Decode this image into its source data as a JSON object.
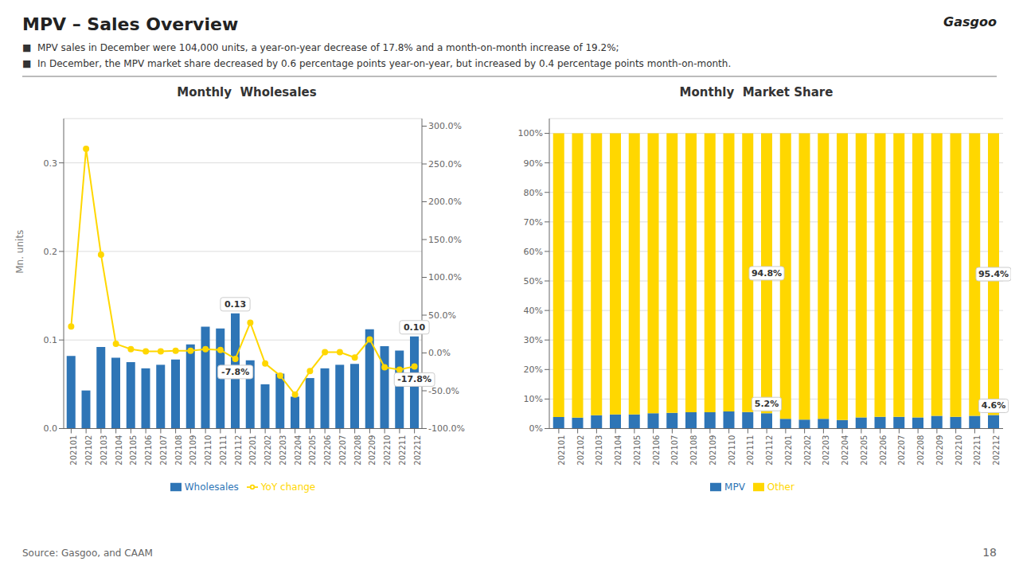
{
  "title": "MPV – Sales Overview",
  "subtitle": [
    "■  MPV sales in December were 104,000 units, a year-on-year decrease of 17.8% and a month-on-month increase of 19.2%;",
    "■  In December, the MPV market share decreased by 0.6 percentage points year-on-year, but increased by 0.4 percentage points month-on-month."
  ],
  "source": "Source: Gasgoo, and CAAM",
  "page": "18",
  "logo": "Gasgoo",
  "chart_data": [
    {
      "type": "bar",
      "title": "Monthly  Wholesales",
      "ylabel": "Mn. units",
      "categories": [
        "202101",
        "202102",
        "202103",
        "202104",
        "202105",
        "202106",
        "202107",
        "202108",
        "202109",
        "202110",
        "202111",
        "202112",
        "202201",
        "202202",
        "202203",
        "202204",
        "202205",
        "202206",
        "202207",
        "202208",
        "202209",
        "202210",
        "202211",
        "202212"
      ],
      "series": [
        {
          "name": "Wholesales",
          "type": "bar",
          "color": "#2E75B6",
          "values": [
            0.082,
            0.043,
            0.092,
            0.08,
            0.075,
            0.068,
            0.072,
            0.078,
            0.095,
            0.115,
            0.113,
            0.13,
            0.077,
            0.05,
            0.062,
            0.036,
            0.057,
            0.068,
            0.072,
            0.073,
            0.112,
            0.093,
            0.088,
            0.104
          ],
          "value_labels": [
            null,
            null,
            null,
            null,
            null,
            null,
            null,
            null,
            null,
            null,
            null,
            "0.13",
            null,
            null,
            null,
            null,
            null,
            null,
            null,
            null,
            null,
            null,
            null,
            "0.10"
          ]
        },
        {
          "name": "YoY change",
          "type": "line",
          "axis": "y2",
          "color": "#FFD700",
          "marker": "circle",
          "values": [
            35.0,
            270.0,
            130.0,
            12.0,
            5.0,
            2.0,
            2.0,
            3.0,
            3.0,
            5.0,
            4.0,
            -7.8,
            40.0,
            -14.0,
            -30.0,
            -55.0,
            -24.0,
            1.0,
            1.0,
            -6.0,
            18.0,
            -19.0,
            -22.0,
            -17.8
          ],
          "value_labels": [
            null,
            null,
            null,
            null,
            null,
            null,
            null,
            null,
            null,
            null,
            null,
            "-7.8%",
            null,
            null,
            null,
            null,
            null,
            null,
            null,
            null,
            null,
            null,
            null,
            "-17.8%"
          ]
        }
      ],
      "ylim": [
        0,
        0.35
      ],
      "yticks": [
        {
          "value": 0,
          "label": "0.0"
        },
        0.1,
        0.2,
        0.3
      ],
      "y2lim": [
        -100,
        310
      ],
      "y2ticks": [
        {
          "value": -100,
          "label": "-100.0%"
        },
        {
          "value": -50,
          "label": "-50.0%"
        },
        {
          "value": 0,
          "label": "0.0%"
        },
        {
          "value": 50,
          "label": "50.0%"
        },
        {
          "value": 100,
          "label": "100.0%"
        },
        {
          "value": 150,
          "label": "150.0%"
        },
        {
          "value": 200,
          "label": "200.0%"
        },
        {
          "value": 250,
          "label": "250.0%"
        },
        {
          "value": 300,
          "label": "300.0%"
        }
      ],
      "grid": true,
      "legend": "bottom"
    },
    {
      "type": "bar",
      "stacked": true,
      "title": "Monthly  Market Share",
      "categories": [
        "202101",
        "202102",
        "202103",
        "202104",
        "202105",
        "202106",
        "202107",
        "202108",
        "202109",
        "202110",
        "202111",
        "202112",
        "202201",
        "202202",
        "202203",
        "202204",
        "202205",
        "202206",
        "202207",
        "202208",
        "202209",
        "202210",
        "202211",
        "202212"
      ],
      "series": [
        {
          "name": "MPV",
          "color": "#2E75B6",
          "values": [
            3.9,
            3.7,
            4.5,
            4.8,
            4.8,
            5.2,
            5.3,
            5.5,
            5.5,
            5.8,
            5.6,
            5.2,
            3.3,
            3.0,
            3.3,
            2.9,
            3.8,
            4.0,
            4.0,
            3.8,
            4.3,
            4.0,
            4.3,
            4.6
          ],
          "value_labels": [
            null,
            null,
            null,
            null,
            null,
            null,
            null,
            null,
            null,
            null,
            null,
            "5.2%",
            null,
            null,
            null,
            null,
            null,
            null,
            null,
            null,
            null,
            null,
            null,
            "4.6%"
          ]
        },
        {
          "name": "Other",
          "color": "#FFD700",
          "values": [
            96.1,
            96.3,
            95.5,
            95.2,
            95.2,
            94.8,
            94.7,
            94.5,
            94.5,
            94.2,
            94.4,
            94.8,
            96.7,
            97.0,
            96.7,
            97.1,
            96.2,
            96.0,
            96.0,
            96.2,
            95.7,
            96.0,
            95.7,
            95.4
          ],
          "value_labels": [
            null,
            null,
            null,
            null,
            null,
            null,
            null,
            null,
            null,
            null,
            null,
            "94.8%",
            null,
            null,
            null,
            null,
            null,
            null,
            null,
            null,
            null,
            null,
            null,
            "95.4%"
          ]
        }
      ],
      "ylim": [
        0,
        105
      ],
      "yticks": [
        {
          "value": 0,
          "label": "0%"
        },
        {
          "value": 10,
          "label": "10%"
        },
        {
          "value": 20,
          "label": "20%"
        },
        {
          "value": 30,
          "label": "30%"
        },
        {
          "value": 40,
          "label": "40%"
        },
        {
          "value": 50,
          "label": "50%"
        },
        {
          "value": 60,
          "label": "60%"
        },
        {
          "value": 70,
          "label": "70%"
        },
        {
          "value": 80,
          "label": "80%"
        },
        {
          "value": 90,
          "label": "90%"
        },
        {
          "value": 100,
          "label": "100%"
        }
      ],
      "grid": true,
      "legend": "bottom"
    }
  ]
}
